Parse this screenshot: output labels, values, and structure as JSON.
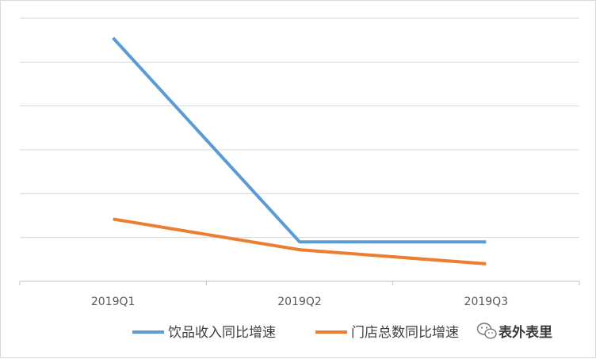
{
  "chart_data": {
    "type": "line",
    "categories": [
      "2019Q1",
      "2019Q2",
      "2019Q3"
    ],
    "ylim": [
      0,
      6
    ],
    "y_gridlines": [
      0,
      1,
      2,
      3,
      4,
      5,
      6
    ],
    "y_tick_labels_visible": false,
    "grid": true,
    "legend_position": "bottom",
    "series": [
      {
        "name": "饮品收入同比增速",
        "values": [
          5.55,
          0.9,
          0.9
        ],
        "color": "#5b9bd5"
      },
      {
        "name": "门店总数同比增速",
        "values": [
          1.42,
          0.72,
          0.4
        ],
        "color": "#ed7d31"
      }
    ]
  },
  "watermark": {
    "text": "表外表里",
    "icon": "wechat-icon"
  }
}
